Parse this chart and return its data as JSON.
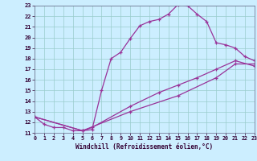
{
  "xlabel": "Windchill (Refroidissement éolien,°C)",
  "xlim": [
    0,
    23
  ],
  "ylim": [
    11,
    23
  ],
  "xticks": [
    0,
    1,
    2,
    3,
    4,
    5,
    6,
    7,
    8,
    9,
    10,
    11,
    12,
    13,
    14,
    15,
    16,
    17,
    18,
    19,
    20,
    21,
    22,
    23
  ],
  "yticks": [
    11,
    12,
    13,
    14,
    15,
    16,
    17,
    18,
    19,
    20,
    21,
    22,
    23
  ],
  "line_color": "#993399",
  "bg_color": "#cceeff",
  "grid_color": "#99cccc",
  "line1_x": [
    0,
    1,
    2,
    3,
    4,
    5,
    6,
    7,
    8,
    9,
    10,
    11,
    12,
    13,
    14,
    15,
    16,
    17,
    18,
    19,
    20,
    21,
    22,
    23
  ],
  "line1_y": [
    12.5,
    11.8,
    11.5,
    11.5,
    11.2,
    11.2,
    11.3,
    15.0,
    18.0,
    18.6,
    19.9,
    21.1,
    21.5,
    21.7,
    22.2,
    23.1,
    23.0,
    22.2,
    21.5,
    19.5,
    19.3,
    19.0,
    18.2,
    17.8
  ],
  "line2_x": [
    0,
    5,
    6,
    10,
    13,
    15,
    17,
    19,
    21,
    23
  ],
  "line2_y": [
    12.5,
    11.2,
    11.5,
    13.5,
    14.8,
    15.5,
    16.2,
    17.0,
    17.8,
    17.3
  ],
  "line3_x": [
    0,
    5,
    10,
    15,
    19,
    21,
    23
  ],
  "line3_y": [
    12.5,
    11.2,
    13.0,
    14.5,
    16.2,
    17.5,
    17.5
  ]
}
